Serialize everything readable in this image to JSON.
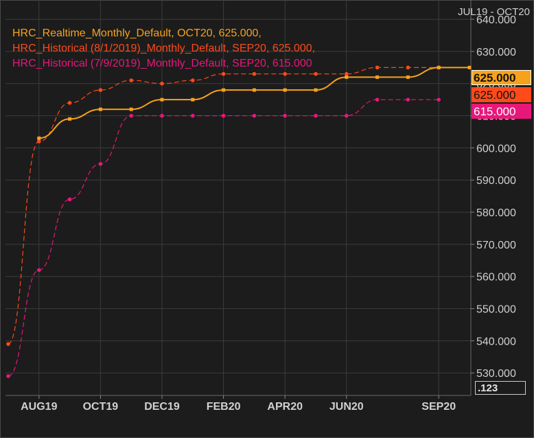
{
  "header": {
    "date_range": "JUL19 - OCT20"
  },
  "decimals_button": ".123",
  "colors": {
    "realtime": "#f7a21b",
    "hist_aug": "#ff4a1a",
    "hist_jul": "#e8177a",
    "background": "#1c1c1c",
    "grid": "#3c3c3c",
    "axis_text": "#d0d0d0"
  },
  "chart_data": {
    "type": "line",
    "x": [
      "JUL19",
      "AUG19",
      "SEP19",
      "OCT19",
      "NOV19",
      "DEC19",
      "JAN20",
      "FEB20",
      "MAR20",
      "APR20",
      "MAY20",
      "JUN20",
      "JUL20",
      "AUG20",
      "SEP20",
      "OCT20"
    ],
    "x_tick_labels": [
      "AUG19",
      "OCT19",
      "DEC19",
      "FEB20",
      "APR20",
      "JUN20",
      "SEP20"
    ],
    "y_tick_labels": [
      "530.000",
      "540.000",
      "550.000",
      "560.000",
      "570.000",
      "580.000",
      "590.000",
      "600.000",
      "610.000",
      "620.000",
      "630.000",
      "640.000"
    ],
    "ylim": [
      523,
      646
    ],
    "grid": true,
    "legend_placement": "top-left",
    "series": [
      {
        "name": "HRC_Realtime_Monthly_Default",
        "legend": "HRC_Realtime_Monthly_Default, OCT20, 625.000,",
        "last_label": "625.000",
        "style": "solid",
        "values": [
          null,
          603,
          609,
          612,
          612,
          615,
          615,
          618,
          618,
          618,
          618,
          622,
          622,
          622,
          625,
          625
        ]
      },
      {
        "name": "HRC_Historical (8/1/2019)_Monthly_Default",
        "legend": "HRC_Historical (8/1/2019)_Monthly_Default, SEP20, 625.000,",
        "last_label": "625.000",
        "style": "dashed",
        "values": [
          539,
          602,
          614,
          618,
          621,
          620,
          621,
          623,
          623,
          623,
          623,
          623,
          625,
          625,
          625,
          null
        ]
      },
      {
        "name": "HRC_Historical (7/9/2019)_Monthly_Default",
        "legend": "HRC_Historical (7/9/2019)_Monthly_Default, SEP20, 615.000",
        "last_label": "615.000",
        "style": "dashed",
        "values": [
          529,
          562,
          584,
          595,
          610,
          610,
          610,
          610,
          610,
          610,
          610,
          610,
          615,
          615,
          615,
          null
        ]
      }
    ]
  }
}
